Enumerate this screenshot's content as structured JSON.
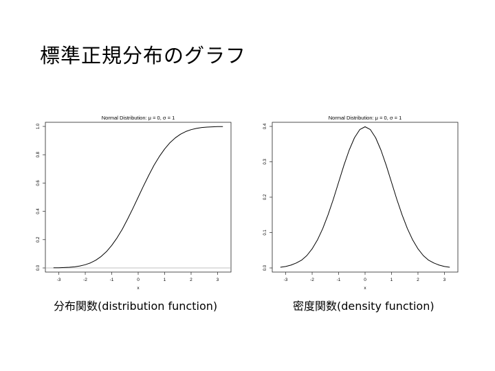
{
  "slide": {
    "title": "標準正規分布のグラフ",
    "captions": [
      "分布関数(distribution function)",
      "密度関数(density function)"
    ]
  },
  "chart_data": [
    {
      "type": "line",
      "title": "Normal Distribution: μ = 0, σ = 1",
      "xlabel": "x",
      "ylabel": "",
      "xlim": [
        -3.3,
        3.3
      ],
      "ylim": [
        0,
        1.0
      ],
      "xticks": [
        "-3",
        "-2",
        "-1",
        "0",
        "1",
        "2",
        "3"
      ],
      "yticks": [
        "0.0",
        "0.2",
        "0.4",
        "0.6",
        "0.8",
        "1.0"
      ],
      "baseline": 0,
      "grid": false,
      "color": "#000000",
      "series": [
        {
          "x": [
            -3.2,
            -3.0,
            -2.8,
            -2.6,
            -2.4,
            -2.2,
            -2.0,
            -1.8,
            -1.6,
            -1.4,
            -1.2,
            -1.0,
            -0.8,
            -0.6,
            -0.4,
            -0.2,
            0.0,
            0.2,
            0.4,
            0.6,
            0.8,
            1.0,
            1.2,
            1.4,
            1.6,
            1.8,
            2.0,
            2.2,
            2.4,
            2.6,
            2.8,
            3.0,
            3.2
          ],
          "values": [
            0.001,
            0.001,
            0.003,
            0.005,
            0.008,
            0.014,
            0.023,
            0.036,
            0.055,
            0.081,
            0.115,
            0.159,
            0.212,
            0.274,
            0.345,
            0.421,
            0.5,
            0.579,
            0.655,
            0.726,
            0.788,
            0.841,
            0.885,
            0.919,
            0.945,
            0.964,
            0.977,
            0.986,
            0.992,
            0.995,
            0.997,
            0.999,
            0.999
          ]
        }
      ]
    },
    {
      "type": "line",
      "title": "Normal Distribution: μ = 0, σ = 1",
      "xlabel": "x",
      "ylabel": "",
      "xlim": [
        -3.3,
        3.3
      ],
      "ylim": [
        0,
        0.4
      ],
      "xticks": [
        "-3",
        "-2",
        "-1",
        "0",
        "1",
        "2",
        "3"
      ],
      "yticks": [
        "0.0",
        "0.1",
        "0.2",
        "0.3",
        "0.4"
      ],
      "grid": false,
      "color": "#000000",
      "series": [
        {
          "x": [
            -3.2,
            -3.0,
            -2.8,
            -2.6,
            -2.4,
            -2.2,
            -2.0,
            -1.8,
            -1.6,
            -1.4,
            -1.2,
            -1.0,
            -0.8,
            -0.6,
            -0.4,
            -0.2,
            0.0,
            0.2,
            0.4,
            0.6,
            0.8,
            1.0,
            1.2,
            1.4,
            1.6,
            1.8,
            2.0,
            2.2,
            2.4,
            2.6,
            2.8,
            3.0,
            3.2
          ],
          "values": [
            0.002,
            0.004,
            0.008,
            0.014,
            0.022,
            0.035,
            0.054,
            0.079,
            0.111,
            0.15,
            0.194,
            0.242,
            0.29,
            0.333,
            0.368,
            0.391,
            0.399,
            0.391,
            0.368,
            0.333,
            0.29,
            0.242,
            0.194,
            0.15,
            0.111,
            0.079,
            0.054,
            0.035,
            0.022,
            0.014,
            0.008,
            0.004,
            0.002
          ]
        }
      ]
    }
  ]
}
